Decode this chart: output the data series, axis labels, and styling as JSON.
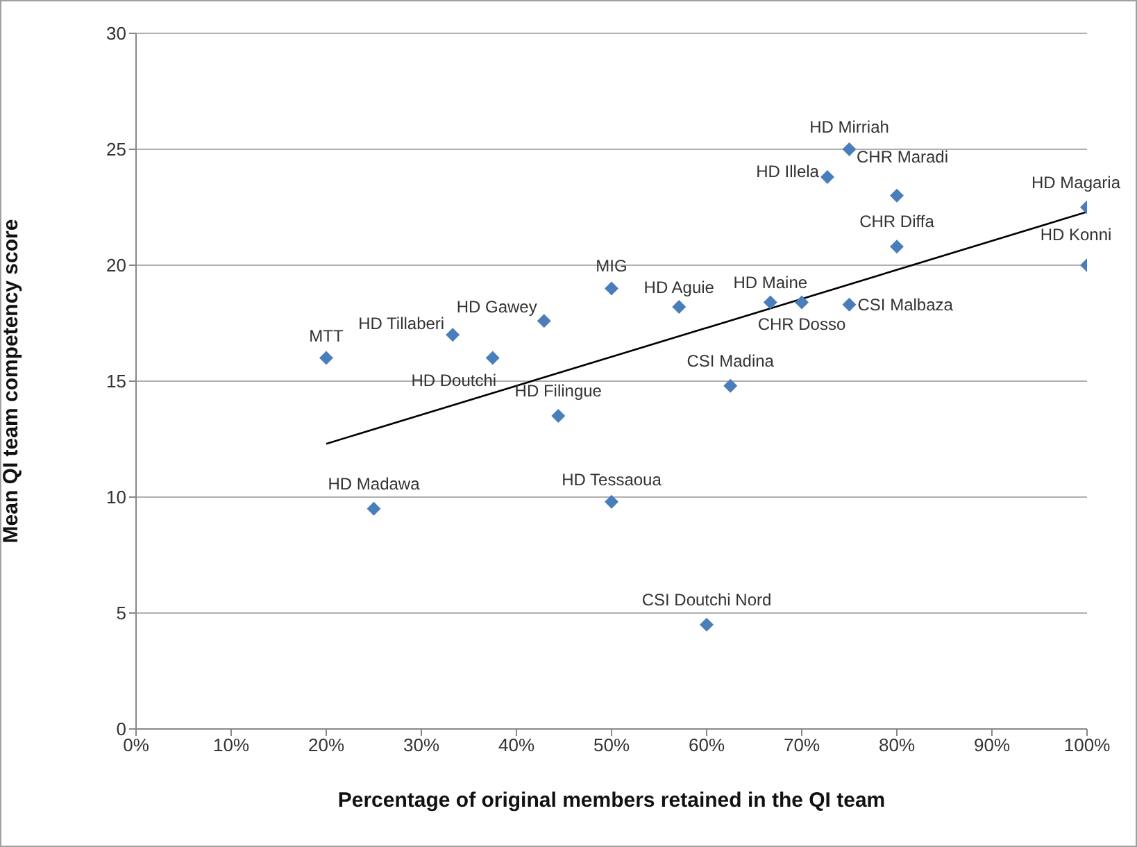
{
  "chart_data": {
    "type": "scatter",
    "xlabel": "Percentage of original members retained in the QI team",
    "ylabel": "Mean QI team competency score",
    "xlim": [
      0,
      100
    ],
    "xticks": [
      {
        "value": 0,
        "label": "0%"
      },
      {
        "value": 10,
        "label": "10%"
      },
      {
        "value": 20,
        "label": "20%"
      },
      {
        "value": 30,
        "label": "30%"
      },
      {
        "value": 40,
        "label": "40%"
      },
      {
        "value": 50,
        "label": "50%"
      },
      {
        "value": 60,
        "label": "60%"
      },
      {
        "value": 70,
        "label": "70%"
      },
      {
        "value": 80,
        "label": "80%"
      },
      {
        "value": 90,
        "label": "90%"
      },
      {
        "value": 100,
        "label": "100%"
      }
    ],
    "ylim": [
      0,
      30
    ],
    "yticks": [
      0,
      5,
      10,
      15,
      20,
      25,
      30
    ],
    "grid": "y",
    "series": [
      {
        "type": "scatter",
        "marker": "diamond",
        "color": "#4a7ebb",
        "x": [
          20,
          33.3,
          37.5,
          42.9,
          50,
          44.4,
          25,
          50,
          60,
          57.1,
          66.7,
          70,
          75,
          62.5,
          75,
          72.7,
          80,
          80,
          100,
          100
        ],
        "values": [
          16,
          17,
          16,
          17.6,
          19,
          13.5,
          9.5,
          9.8,
          4.5,
          18.2,
          18.4,
          18.4,
          18.3,
          14.8,
          25,
          23.8,
          23,
          20.8,
          22.5,
          20
        ]
      },
      {
        "type": "line",
        "marker": "none",
        "line_style": "solid",
        "color": "#000000",
        "x": [
          20,
          100
        ],
        "values": [
          12.3,
          22.3
        ]
      }
    ],
    "annotations": [
      {
        "text": "MTT",
        "x": 20,
        "y": 16
      },
      {
        "text": "HD Tillaberi",
        "x": 33.3,
        "y": 17
      },
      {
        "text": "HD Doutchi",
        "x": 37.5,
        "y": 16
      },
      {
        "text": "HD Gawey",
        "x": 42.9,
        "y": 17.6
      },
      {
        "text": "MIG",
        "x": 50,
        "y": 19
      },
      {
        "text": "HD Filingue",
        "x": 44.4,
        "y": 13.5
      },
      {
        "text": "HD Madawa",
        "x": 25,
        "y": 9.5
      },
      {
        "text": "HD Tessaoua",
        "x": 50,
        "y": 9.8
      },
      {
        "text": "CSI Doutchi Nord",
        "x": 60,
        "y": 4.5
      },
      {
        "text": "HD Aguie",
        "x": 57.1,
        "y": 18.2
      },
      {
        "text": "HD Maine",
        "x": 66.7,
        "y": 18.4
      },
      {
        "text": "CHR Dosso",
        "x": 70,
        "y": 18.4
      },
      {
        "text": "CSI Malbaza",
        "x": 75,
        "y": 18.3
      },
      {
        "text": "CSI Madina",
        "x": 62.5,
        "y": 14.8
      },
      {
        "text": "HD Mirriah",
        "x": 75,
        "y": 25
      },
      {
        "text": "HD Illela",
        "x": 72.7,
        "y": 23.8
      },
      {
        "text": "CHR Maradi",
        "x": 80,
        "y": 23
      },
      {
        "text": "CHR Diffa",
        "x": 80,
        "y": 20.8
      },
      {
        "text": "HD Magaria",
        "x": 100,
        "y": 22.5
      },
      {
        "text": "HD Konni",
        "x": 100,
        "y": 20
      }
    ]
  }
}
